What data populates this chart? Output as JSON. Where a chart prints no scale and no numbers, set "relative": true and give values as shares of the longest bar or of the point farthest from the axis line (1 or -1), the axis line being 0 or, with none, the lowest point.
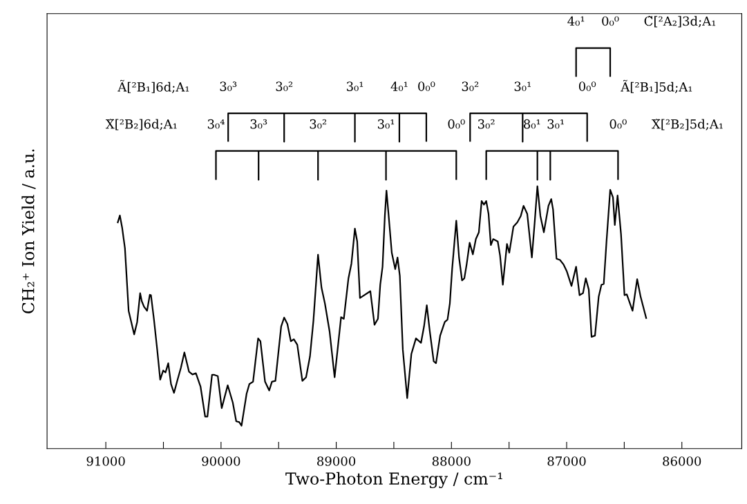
{
  "chart_data": {
    "type": "line",
    "relative": true,
    "xlabel": "Two-Photon Energy / cm⁻¹",
    "ylabel": "CH₂⁺ Ion Yield / a.u.",
    "xlim": [
      91510,
      85480
    ],
    "xticks": [
      91000,
      {
        "value": 90500,
        "label": null
      },
      90000,
      {
        "value": 89500,
        "label": null
      },
      89000,
      {
        "value": 88500,
        "label": null
      },
      88000,
      {
        "value": 87500,
        "label": null
      },
      87000,
      {
        "value": 86500,
        "label": null
      },
      86000
    ],
    "tick_labels": "x",
    "grid": false,
    "legend": false,
    "marker": "none",
    "line_style": "solid",
    "series": [
      {
        "color": "#000000",
        "x": [
          90898,
          90878,
          90858,
          90834,
          90802,
          90754,
          90728,
          90702,
          90688,
          90668,
          90642,
          90618,
          90608,
          90582,
          90554,
          90528,
          90502,
          90482,
          90458,
          90434,
          90408,
          90382,
          90348,
          90318,
          90278,
          90248,
          90218,
          90178,
          90138,
          90118,
          90078,
          90058,
          90028,
          89994,
          89942,
          89898,
          89868,
          89842,
          89822,
          89778,
          89754,
          89722,
          89678,
          89658,
          89618,
          89582,
          89558,
          89528,
          89478,
          89452,
          89424,
          89394,
          89368,
          89338,
          89294,
          89262,
          89228,
          89198,
          89158,
          89128,
          89098,
          89058,
          89014,
          88958,
          88934,
          88894,
          88868,
          88838,
          88818,
          88794,
          88704,
          88668,
          88638,
          88618,
          88598,
          88578,
          88564,
          88548,
          88518,
          88488,
          88468,
          88448,
          88422,
          88384,
          88348,
          88308,
          88264,
          88238,
          88214,
          88188,
          88154,
          88134,
          88098,
          88058,
          88034,
          88014,
          87994,
          87958,
          87934,
          87908,
          87888,
          87868,
          87842,
          87814,
          87788,
          87762,
          87738,
          87718,
          87698,
          87678,
          87658,
          87638,
          87598,
          87578,
          87554,
          87518,
          87498,
          87462,
          87428,
          87398,
          87374,
          87342,
          87302,
          87278,
          87254,
          87228,
          87198,
          87158,
          87134,
          87118,
          87088,
          87058,
          87028,
          86998,
          86958,
          86918,
          86888,
          86858,
          86834,
          86808,
          86784,
          86754,
          86722,
          86698,
          86678,
          86654,
          86622,
          86598,
          86582,
          86558,
          86528,
          86498,
          86478,
          86428,
          86388,
          86358,
          86308
        ],
        "values": [
          0.563,
          0.582,
          0.551,
          0.5,
          0.344,
          0.285,
          0.316,
          0.388,
          0.368,
          0.354,
          0.344,
          0.384,
          0.383,
          0.322,
          0.247,
          0.172,
          0.195,
          0.19,
          0.213,
          0.161,
          0.139,
          0.167,
          0.202,
          0.24,
          0.192,
          0.185,
          0.188,
          0.155,
          0.08,
          0.08,
          0.184,
          0.184,
          0.181,
          0.101,
          0.158,
          0.115,
          0.068,
          0.066,
          0.057,
          0.137,
          0.161,
          0.167,
          0.275,
          0.268,
          0.167,
          0.145,
          0.167,
          0.169,
          0.305,
          0.327,
          0.311,
          0.268,
          0.273,
          0.259,
          0.169,
          0.178,
          0.23,
          0.319,
          0.484,
          0.402,
          0.362,
          0.293,
          0.178,
          0.328,
          0.324,
          0.425,
          0.462,
          0.549,
          0.517,
          0.376,
          0.393,
          0.309,
          0.324,
          0.409,
          0.454,
          0.581,
          0.644,
          0.592,
          0.489,
          0.448,
          0.477,
          0.431,
          0.247,
          0.126,
          0.236,
          0.275,
          0.264,
          0.305,
          0.358,
          0.293,
          0.218,
          0.213,
          0.282,
          0.316,
          0.322,
          0.362,
          0.448,
          0.569,
          0.477,
          0.42,
          0.425,
          0.46,
          0.514,
          0.485,
          0.523,
          0.54,
          0.618,
          0.609,
          0.618,
          0.586,
          0.508,
          0.523,
          0.517,
          0.482,
          0.409,
          0.511,
          0.489,
          0.554,
          0.565,
          0.581,
          0.606,
          0.586,
          0.477,
          0.563,
          0.655,
          0.581,
          0.54,
          0.606,
          0.623,
          0.597,
          0.474,
          0.471,
          0.46,
          0.442,
          0.406,
          0.454,
          0.383,
          0.388,
          0.425,
          0.397,
          0.279,
          0.282,
          0.379,
          0.409,
          0.411,
          0.517,
          0.646,
          0.627,
          0.558,
          0.632,
          0.535,
          0.383,
          0.385,
          0.344,
          0.423,
          0.379,
          0.324
        ]
      },
      {
        "color": "#000000",
        "x": [
          89938,
          89938,
          89452,
          89452,
          89452,
          88838,
          88838,
          88838,
          88452,
          88452,
          88452,
          88218,
          88218
        ],
        "values": [
          0.766,
          0.837,
          0.837,
          0.766,
          0.837,
          0.837,
          0.766,
          0.837,
          0.837,
          0.766,
          0.837,
          0.837,
          0.766
        ]
      },
      {
        "color": "#000000",
        "x": [
          90044,
          90044,
          89674,
          89674,
          89674,
          89158,
          89158,
          89158,
          88568,
          88568,
          88568,
          87958,
          87958
        ],
        "values": [
          0.671,
          0.743,
          0.743,
          0.671,
          0.743,
          0.743,
          0.671,
          0.743,
          0.743,
          0.671,
          0.743,
          0.743,
          0.671
        ]
      },
      {
        "color": "#000000",
        "x": [
          87838,
          87838,
          87382,
          87382,
          87382,
          86822,
          86822
        ],
        "values": [
          0.766,
          0.837,
          0.837,
          0.766,
          0.837,
          0.837,
          0.766
        ]
      },
      {
        "color": "#000000",
        "x": [
          87698,
          87698,
          87254,
          87254,
          87254,
          87142,
          87142,
          87142,
          86554,
          86554
        ],
        "values": [
          0.671,
          0.743,
          0.743,
          0.671,
          0.743,
          0.743,
          0.671,
          0.743,
          0.743,
          0.671
        ]
      },
      {
        "color": "#000000",
        "x": [
          86918,
          86918,
          86622,
          86622
        ],
        "values": [
          0.928,
          1.0,
          1.0,
          0.928
        ]
      }
    ],
    "annotations": [
      {
        "text": "3₀³",
        "x": 89938,
        "y": 0.837
      },
      {
        "text": "3₀²",
        "x": 89452,
        "y": 0.837
      },
      {
        "text": "3₀¹",
        "x": 88838,
        "y": 0.837
      },
      {
        "text": "4₀¹",
        "x": 88452,
        "y": 0.837
      },
      {
        "text": "0₀⁰",
        "x": 88218,
        "y": 0.837
      },
      {
        "text": "3₀⁴",
        "x": 90044,
        "y": 0.743
      },
      {
        "text": "3₀³",
        "x": 89674,
        "y": 0.743
      },
      {
        "text": "3₀²",
        "x": 89158,
        "y": 0.743
      },
      {
        "text": "3₀¹",
        "x": 88568,
        "y": 0.743
      },
      {
        "text": "0₀⁰",
        "x": 87958,
        "y": 0.743
      },
      {
        "text": "3₀²",
        "x": 87838,
        "y": 0.837
      },
      {
        "text": "3₀¹",
        "x": 87382,
        "y": 0.837
      },
      {
        "text": "0₀⁰",
        "x": 86822,
        "y": 0.837
      },
      {
        "text": "3₀²",
        "x": 87698,
        "y": 0.743
      },
      {
        "text": "8₀¹",
        "x": 87254,
        "y": 0.743
      },
      {
        "text": "3₀¹",
        "x": 87142,
        "y": 0.743
      },
      {
        "text": "0₀⁰",
        "x": 86554,
        "y": 0.743
      },
      {
        "text": "4₀¹",
        "x": 86918,
        "y": 1.0
      },
      {
        "text": "0₀⁰",
        "x": 86622,
        "y": 1.0
      },
      "Ã[²B₁]6d;A₁",
      "X̃[²B₂]6d;A₁",
      "Ã[²B₁]5d;A₁",
      "X̃[²B₂]5d;A₁",
      "C̃[²A₂]3d;A₁"
    ]
  }
}
